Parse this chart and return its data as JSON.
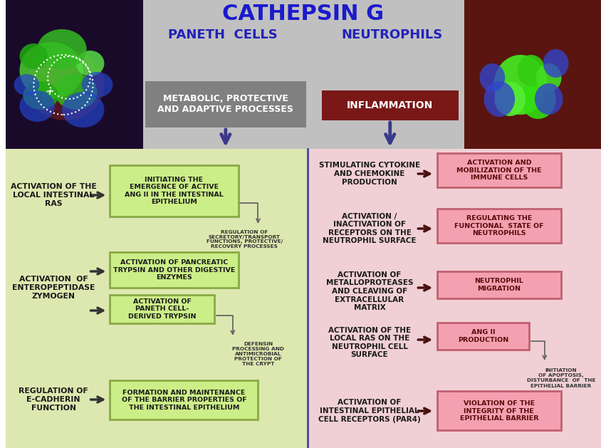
{
  "title": "CATHEPSIN G",
  "subtitle_left": "PANETH  CELLS",
  "subtitle_right": "NEUTROPHILS",
  "header_left_box": "METABOLIC, PROTECTIVE\nAND ADAPTIVE PROCESSES",
  "header_right_box": "INFLAMMATION",
  "bg_top_color": "#c0c0c0",
  "bg_left_bottom": "#dde8b0",
  "bg_right_bottom": "#f0d0d5",
  "green_box_bg": "#ccee88",
  "green_box_border": "#88aa44",
  "pink_box_bg": "#f4a0b0",
  "pink_box_border": "#c06070",
  "header_gray_bg": "#808080",
  "header_maroon_bg": "#7a1818",
  "title_color": "#1a1acc",
  "subtitle_color": "#2222bb",
  "arrow_dark": "#3a3a8a",
  "arrow_brown": "#4a1010",
  "text_dark": "#1a1a1a",
  "text_note": "#333333"
}
